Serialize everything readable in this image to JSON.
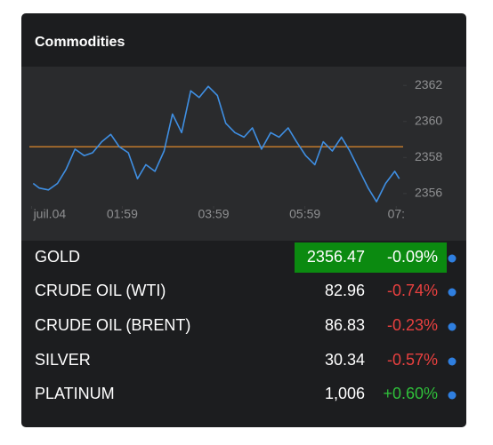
{
  "header": {
    "title": "Commodities"
  },
  "chart_data": {
    "type": "line",
    "x": [
      2,
      10,
      22,
      34,
      45,
      57,
      69,
      80,
      92,
      104,
      115,
      127,
      139,
      150,
      162,
      174,
      185,
      197,
      209,
      220,
      232,
      244,
      255,
      267,
      279,
      290,
      302,
      314,
      325,
      337,
      348,
      360,
      372,
      383,
      395,
      407,
      418,
      430,
      442,
      453,
      465,
      477,
      483
    ],
    "values": [
      2356.56,
      2356.3,
      2356.2,
      2356.56,
      2357.33,
      2358.46,
      2358.1,
      2358.26,
      2358.87,
      2359.28,
      2358.6,
      2358.26,
      2356.82,
      2357.6,
      2357.23,
      2358.36,
      2360.41,
      2359.38,
      2361.7,
      2361.33,
      2361.95,
      2361.44,
      2359.9,
      2359.38,
      2359.13,
      2359.64,
      2358.46,
      2359.38,
      2359.13,
      2359.64,
      2358.87,
      2358.1,
      2357.6,
      2358.87,
      2358.36,
      2359.13,
      2358.36,
      2357.33,
      2356.3,
      2355.54,
      2356.56,
      2357.23,
      2356.82
    ],
    "color": "#3f8fe3",
    "reference_line": 2358.59,
    "reference_color": "#c07a2c",
    "xlim": [
      -3,
      488
    ],
    "ylim": [
      2355.3,
      2362.7
    ],
    "xticks": [
      {
        "value": 0,
        "label": "juil.04"
      },
      {
        "value": 119,
        "label": "01:59"
      },
      {
        "value": 239,
        "label": "03:59"
      },
      {
        "value": 359,
        "label": "05:59"
      },
      {
        "value": 479,
        "label": "07:"
      }
    ],
    "yticks": [
      2356,
      2358,
      2360,
      2362
    ]
  },
  "table": {
    "rows": [
      {
        "name": "GOLD",
        "price": "2356.47",
        "change": "-0.09%",
        "highlighted": true
      },
      {
        "name": "CRUDE OIL (WTI)",
        "price": "82.96",
        "change": "-0.74%"
      },
      {
        "name": "CRUDE OIL (BRENT)",
        "price": "86.83",
        "change": "-0.23%"
      },
      {
        "name": "SILVER",
        "price": "30.34",
        "change": "-0.57%"
      },
      {
        "name": "PLATINUM",
        "price": "1,006",
        "change": "+0.60%"
      }
    ]
  }
}
